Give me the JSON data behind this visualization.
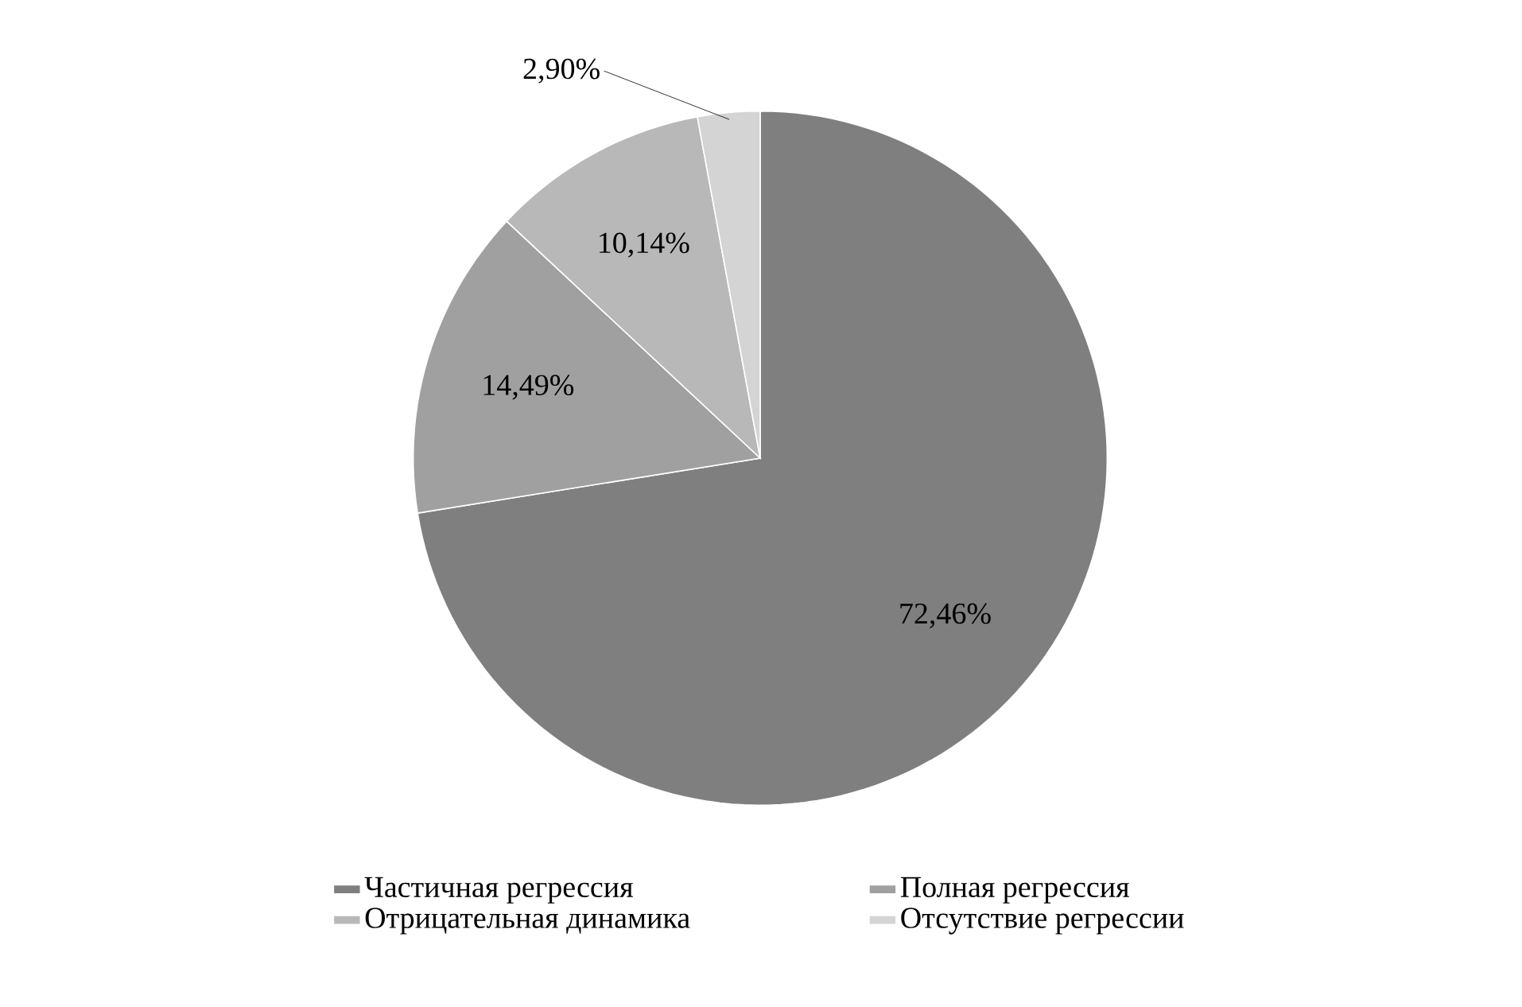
{
  "chart_data": {
    "type": "pie",
    "categories": [
      "Частичная регрессия",
      "Полная регрессия",
      "Отрицательная динамика",
      "Отсутствие регрессии"
    ],
    "values": [
      72.46,
      14.49,
      10.14,
      2.9
    ],
    "value_labels": [
      "72,46%",
      "14,49%",
      "10,14%",
      "2,90%"
    ],
    "colors": [
      "#7f7f7f",
      "#a0a0a0",
      "#b8b8b8",
      "#d4d4d4"
    ],
    "legend": "bottom"
  }
}
